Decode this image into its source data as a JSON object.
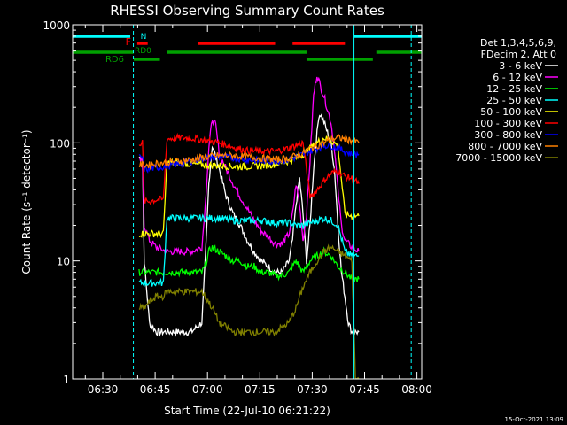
{
  "chart_data": {
    "type": "line",
    "title": "RHESSI Observing Summary Count Rates",
    "xlabel": "Start Time (22-Jul-10 06:21:22)",
    "ylabel": "Count Rate (s⁻¹ detector⁻¹)",
    "x_unit": "minutes since 06:21:22 (22-Jul-10)",
    "xlim": [
      0,
      100
    ],
    "ylim": [
      1,
      1000
    ],
    "y_scale": "log",
    "x_ticks": [
      {
        "v": 8.63,
        "label": "06:30"
      },
      {
        "v": 23.63,
        "label": "06:45"
      },
      {
        "v": 38.63,
        "label": "07:00"
      },
      {
        "v": 53.63,
        "label": "07:15"
      },
      {
        "v": 68.63,
        "label": "07:30"
      },
      {
        "v": 83.63,
        "label": "07:45"
      },
      {
        "v": 98.63,
        "label": "08:00"
      }
    ],
    "y_ticks": [
      {
        "v": 1,
        "label": "1"
      },
      {
        "v": 10,
        "label": "10"
      },
      {
        "v": 100,
        "label": "100"
      },
      {
        "v": 1000,
        "label": "1000"
      }
    ],
    "legend": {
      "placement": "right",
      "header": [
        "Det 1,3,4,5,6,9,",
        "FDecim 2, Att 0"
      ]
    },
    "timestamp": "15-Oct-2021 13:09",
    "series": [
      {
        "name": "3 - 6 keV",
        "color": "#ffffff",
        "x": [
          19,
          20,
          20.5,
          22,
          24,
          27,
          30,
          34,
          37,
          38,
          39,
          40,
          42,
          44,
          46,
          48,
          50,
          52,
          54,
          56,
          58,
          60,
          62,
          63,
          64,
          65,
          66,
          67,
          68,
          69,
          70,
          70.5,
          71,
          72,
          74,
          75,
          76,
          77,
          78,
          79,
          80,
          81,
          82
        ],
        "y": [
          75,
          75,
          10,
          3,
          2.5,
          2.5,
          2.5,
          2.5,
          3,
          10,
          45,
          95,
          60,
          35,
          25,
          20,
          15,
          12,
          10,
          9,
          8,
          8,
          10,
          15,
          30,
          50,
          25,
          10,
          20,
          60,
          120,
          170,
          175,
          150,
          100,
          60,
          20,
          8,
          5,
          3,
          2.5,
          2.5,
          2.5
        ]
      },
      {
        "name": "6 - 12 keV",
        "color": "#ff00ff",
        "x": [
          19,
          20,
          20.5,
          22,
          24,
          27,
          30,
          34,
          37,
          38,
          39,
          40,
          41,
          42,
          44,
          46,
          48,
          50,
          52,
          54,
          56,
          58,
          60,
          62,
          63,
          64,
          65,
          66,
          67,
          68,
          69,
          70,
          70.5,
          71,
          72,
          74,
          75,
          76,
          77,
          78,
          80,
          82
        ],
        "y": [
          70,
          70,
          20,
          15,
          13,
          12,
          12,
          12,
          13,
          30,
          90,
          160,
          140,
          80,
          60,
          45,
          35,
          28,
          22,
          18,
          16,
          14,
          14,
          17,
          25,
          45,
          30,
          15,
          25,
          70,
          250,
          380,
          340,
          300,
          250,
          150,
          90,
          40,
          20,
          15,
          13,
          12
        ]
      },
      {
        "name": "12 - 25 keV",
        "color": "#00ff00",
        "x": [
          19,
          20,
          20.5,
          22,
          24,
          27,
          30,
          34,
          37,
          38,
          39,
          40,
          42,
          44,
          46,
          48,
          50,
          52,
          54,
          56,
          58,
          60,
          62,
          63,
          64,
          66,
          68,
          70,
          72,
          74,
          75,
          76,
          78,
          80,
          82
        ],
        "y": [
          8,
          8,
          8,
          8,
          8,
          8,
          8,
          8,
          8,
          9,
          12,
          13,
          12,
          11,
          10,
          10,
          9,
          9,
          8,
          8,
          7.5,
          7.5,
          8,
          9,
          10,
          8,
          10,
          11,
          12,
          11,
          10,
          9,
          8,
          7,
          7
        ]
      },
      {
        "name": "25 - 50 keV",
        "color": "#00ffff",
        "x": [
          19,
          20,
          20.5,
          22,
          24,
          26,
          27,
          30,
          34,
          38,
          42,
          46,
          50,
          54,
          58,
          62,
          64,
          66,
          68,
          70,
          72,
          74,
          75,
          76,
          78,
          80,
          82
        ],
        "y": [
          6.5,
          6.5,
          6.5,
          6.5,
          6.5,
          6.5,
          23,
          23,
          23,
          23,
          23,
          22,
          22,
          22,
          21,
          21,
          20,
          20,
          21,
          22,
          23,
          22,
          21,
          20,
          12,
          11,
          11
        ]
      },
      {
        "name": "50 - 100 keV",
        "color": "#ffff00",
        "x": [
          19,
          20,
          20.5,
          22,
          24,
          26,
          27,
          30,
          34,
          38,
          42,
          46,
          50,
          54,
          58,
          62,
          66,
          68,
          70,
          72,
          74,
          76,
          78,
          80,
          82
        ],
        "y": [
          17,
          17,
          17,
          17,
          17,
          17,
          68,
          68,
          66,
          65,
          64,
          63,
          63,
          64,
          66,
          70,
          80,
          90,
          100,
          110,
          105,
          95,
          25,
          24,
          24
        ]
      },
      {
        "name": "100 - 300 keV",
        "color": "#ff0000",
        "x": [
          19,
          20,
          20.5,
          22,
          24,
          26,
          27,
          30,
          34,
          38,
          42,
          46,
          50,
          54,
          58,
          62,
          66,
          68,
          70,
          72,
          74,
          76,
          78,
          80,
          82
        ],
        "y": [
          100,
          100,
          32,
          32,
          33,
          33,
          108,
          110,
          110,
          105,
          100,
          92,
          86,
          85,
          85,
          90,
          100,
          35,
          40,
          48,
          55,
          58,
          52,
          50,
          45
        ]
      },
      {
        "name": "300 - 800 keV",
        "color": "#0000ff",
        "x": [
          19,
          20,
          20.5,
          22,
          24,
          27,
          30,
          34,
          38,
          42,
          46,
          50,
          54,
          58,
          62,
          66,
          68,
          70,
          72,
          74,
          76,
          78,
          80,
          82
        ],
        "y": [
          75,
          75,
          60,
          60,
          62,
          63,
          66,
          70,
          75,
          76,
          75,
          72,
          70,
          70,
          72,
          80,
          85,
          90,
          95,
          95,
          90,
          85,
          80,
          80
        ]
      },
      {
        "name": "800 - 7000 keV",
        "color": "#ff8000",
        "x": [
          19,
          20,
          20.5,
          22,
          24,
          27,
          30,
          34,
          38,
          42,
          46,
          50,
          54,
          58,
          62,
          66,
          68,
          70,
          72,
          74,
          76,
          78,
          80,
          82
        ],
        "y": [
          65,
          65,
          65,
          65,
          67,
          68,
          70,
          72,
          76,
          78,
          78,
          76,
          74,
          72,
          74,
          82,
          90,
          95,
          100,
          108,
          110,
          108,
          105,
          100
        ]
      },
      {
        "name": "7000 - 15000 keV",
        "color": "#808000",
        "x": [
          19,
          20,
          20.5,
          22,
          24,
          26,
          27,
          30,
          34,
          37,
          38,
          40,
          42,
          46,
          50,
          54,
          58,
          62,
          64,
          66,
          68,
          70,
          72,
          74,
          76,
          78,
          80,
          81,
          82
        ],
        "y": [
          4,
          4,
          4,
          4.5,
          5,
          5,
          5.5,
          5.5,
          5.5,
          5.5,
          5,
          4,
          3,
          2.5,
          2.5,
          2.5,
          2.5,
          3,
          4,
          6,
          8,
          10,
          12,
          13,
          12,
          11,
          10,
          1,
          1
        ]
      }
    ],
    "vlines": [
      {
        "x": 17.4,
        "color": "#00ffff",
        "style": "dashed"
      },
      {
        "x": 80.6,
        "color": "#00ffff",
        "style": "solid"
      },
      {
        "x": 97.0,
        "color": "#00ffff",
        "style": "dashed"
      }
    ],
    "flags": {
      "n": {
        "label": "N",
        "color": "#00ffff",
        "segments": [
          [
            0,
            16.5
          ],
          [
            80.6,
            100
          ]
        ]
      },
      "f": {
        "label": "F",
        "color": "#ff0000",
        "segments": [
          [
            18.5,
            21.5
          ],
          [
            36,
            58
          ],
          [
            63,
            78
          ]
        ]
      },
      "rd0": {
        "label": "RD0",
        "color": "#00a000",
        "segments": [
          [
            0,
            17.5
          ],
          [
            27,
            67
          ],
          [
            87,
            100
          ]
        ]
      },
      "rd6": {
        "label": "RD6",
        "color": "#00a000",
        "segments": [
          [
            17.5,
            25
          ],
          [
            67,
            86
          ]
        ]
      }
    }
  }
}
